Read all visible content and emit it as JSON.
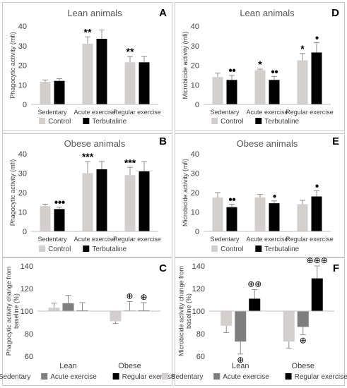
{
  "colors": {
    "control": "#d4cfcf",
    "terbutaline": "#000000",
    "sedentary": "#d4cfcf",
    "acute": "#7f7f7f",
    "regular": "#000000",
    "border": "#c8c8c8",
    "axis_text": "#404040"
  },
  "chart_data": [
    {
      "letter": "A",
      "type": "bar",
      "title": "Lean animals",
      "xlabel": "",
      "ylabel": "Phagocytic activity (mfi)",
      "ylim": [
        0,
        40
      ],
      "yticks": [
        "0",
        "10",
        "20",
        "30",
        "40"
      ],
      "categories": [
        "Sedentary",
        "Acute exercise",
        "Regular exercise"
      ],
      "series": [
        {
          "name": "Control",
          "color": "#d4cfcf",
          "values": [
            11.5,
            31,
            21.5
          ],
          "errors": [
            1,
            3.5,
            3
          ]
        },
        {
          "name": "Terbutaline",
          "color": "#000000",
          "values": [
            12,
            33.5,
            21.5
          ],
          "errors": [
            1.2,
            4.5,
            3
          ]
        }
      ],
      "annotations": [
        {
          "category": 1,
          "series": 0,
          "text": "**"
        },
        {
          "category": 2,
          "series": 0,
          "text": "**"
        }
      ],
      "legend": "bottom",
      "grid": false
    },
    {
      "letter": "D",
      "type": "bar",
      "title": "Lean animals",
      "xlabel": "",
      "ylabel": "Microbicide activity (mfi)",
      "ylim": [
        0,
        40
      ],
      "yticks": [
        "0",
        "10",
        "20",
        "30",
        "40"
      ],
      "categories": [
        "Sedentary",
        "Acute exercise",
        "Regular exercise"
      ],
      "series": [
        {
          "name": "Control",
          "color": "#d4cfcf",
          "values": [
            14,
            17.5,
            22.5
          ],
          "errors": [
            2,
            0.5,
            3.5
          ]
        },
        {
          "name": "Terbutaline",
          "color": "#000000",
          "values": [
            12.5,
            12.5,
            26.5
          ],
          "errors": [
            2.5,
            1.8,
            5
          ]
        }
      ],
      "annotations": [
        {
          "category": 0,
          "series": 1,
          "text": "●●"
        },
        {
          "category": 1,
          "series": 0,
          "text": "*"
        },
        {
          "category": 1,
          "series": 1,
          "text": "●●"
        },
        {
          "category": 2,
          "series": 0,
          "text": "*"
        },
        {
          "category": 2,
          "series": 1,
          "text": "●"
        }
      ],
      "legend": "bottom",
      "grid": false
    },
    {
      "letter": "B",
      "type": "bar",
      "title": "Obese animals",
      "xlabel": "",
      "ylabel": "Phagocytic activity (mfi)",
      "ylim": [
        0,
        40
      ],
      "yticks": [
        "0",
        "10",
        "20",
        "30",
        "40"
      ],
      "categories": [
        "Sedentary",
        "Acute exercise",
        "Regular exercise"
      ],
      "series": [
        {
          "name": "Control",
          "color": "#d4cfcf",
          "values": [
            13,
            30,
            29
          ],
          "errors": [
            1,
            6,
            4
          ]
        },
        {
          "name": "Terbutaline",
          "color": "#000000",
          "values": [
            11.5,
            32,
            31
          ],
          "errors": [
            1,
            4,
            5
          ]
        }
      ],
      "annotations": [
        {
          "category": 0,
          "series": 1,
          "text": "●●●"
        },
        {
          "category": 1,
          "series": 0,
          "text": "***"
        },
        {
          "category": 2,
          "series": 0,
          "text": "***"
        }
      ],
      "legend": "bottom",
      "grid": false
    },
    {
      "letter": "E",
      "type": "bar",
      "title": "Obese animals",
      "xlabel": "",
      "ylabel": "Microbicide activity (mfi)",
      "ylim": [
        0,
        40
      ],
      "yticks": [
        "0",
        "10",
        "20",
        "30",
        "40"
      ],
      "categories": [
        "Sedentary",
        "Acute exercise",
        "Regular exercise"
      ],
      "series": [
        {
          "name": "Control",
          "color": "#d4cfcf",
          "values": [
            17.5,
            17.5,
            14
          ],
          "errors": [
            2.5,
            1.5,
            2
          ]
        },
        {
          "name": "Terbutaline",
          "color": "#000000",
          "values": [
            12.5,
            14.5,
            18
          ],
          "errors": [
            1.5,
            1.2,
            3
          ]
        }
      ],
      "annotations": [
        {
          "category": 0,
          "series": 1,
          "text": "●●"
        },
        {
          "category": 1,
          "series": 1,
          "text": "●"
        },
        {
          "category": 2,
          "series": 1,
          "text": "●"
        }
      ],
      "legend": "bottom",
      "grid": false
    },
    {
      "letter": "C",
      "type": "bar",
      "title": "",
      "xlabel": "",
      "ylabel": "Phagocytic activity change from baseline (%)",
      "ylim": [
        60,
        140
      ],
      "baseline": 100,
      "yticks": [
        "60",
        "80",
        "100",
        "120",
        "140"
      ],
      "categories": [
        "Lean",
        "Obese"
      ],
      "series": [
        {
          "name": "Sedentary",
          "color": "#d4cfcf",
          "values": [
            103,
            91
          ],
          "errors": [
            4,
            2
          ]
        },
        {
          "name": "Acute exercise",
          "color": "#7f7f7f",
          "values": [
            107,
            100.5
          ],
          "errors": [
            7,
            8
          ]
        },
        {
          "name": "Regular exercise",
          "color": "#000000",
          "values": [
            100.5,
            100.5
          ],
          "errors": [
            7,
            7
          ]
        }
      ],
      "annotations": [
        {
          "category": 1,
          "series": 1,
          "text": "⊕"
        },
        {
          "category": 1,
          "series": 2,
          "text": "⊕"
        }
      ],
      "legend": "bottom",
      "grid": false
    },
    {
      "letter": "F",
      "type": "bar",
      "title": "",
      "xlabel": "",
      "ylabel": "Microbicide activity change from baseline (%)",
      "ylim": [
        60,
        140
      ],
      "baseline": 100,
      "yticks": [
        "60",
        "80",
        "100",
        "120",
        "140"
      ],
      "categories": [
        "Lean",
        "Obese"
      ],
      "series": [
        {
          "name": "Sedentary",
          "color": "#d4cfcf",
          "values": [
            87,
            73
          ],
          "errors": [
            6,
            6
          ]
        },
        {
          "name": "Acute exercise",
          "color": "#7f7f7f",
          "values": [
            73,
            86
          ],
          "errors": [
            11,
            7
          ]
        },
        {
          "name": "Regular exercise",
          "color": "#000000",
          "values": [
            111,
            129
          ],
          "errors": [
            8,
            11
          ]
        }
      ],
      "annotations": [
        {
          "category": 0,
          "series": 1,
          "text": "⊕",
          "below": true
        },
        {
          "category": 0,
          "series": 2,
          "text": "⊕⊕"
        },
        {
          "category": 1,
          "series": 1,
          "text": "⊕",
          "below": true
        },
        {
          "category": 1,
          "series": 2,
          "text": "⊕⊕⊕"
        }
      ],
      "legend": "bottom",
      "grid": false
    }
  ]
}
